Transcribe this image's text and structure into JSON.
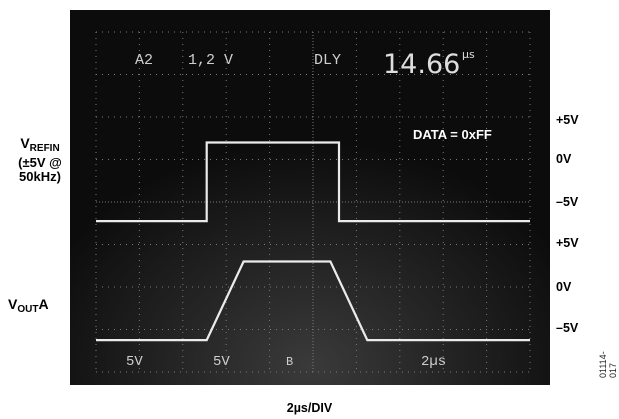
{
  "scope_header": {
    "channel": "A2",
    "scale": "1,2 V",
    "mode": "DLY",
    "delay": "14.66",
    "delay_unit": "µs"
  },
  "scope_footer": {
    "ch1": "5V",
    "ch2": "5V",
    "mark": "B",
    "timebase": "2µs"
  },
  "annotation": "DATA = 0xFF",
  "left_labels": {
    "vrefin_main": "V",
    "vrefin_sub": "REFIN",
    "vrefin_line2": "(±5V @",
    "vrefin_line3": "50kHz)",
    "vout_main": "V",
    "vout_sub": "OUT",
    "vout_suffix": "A"
  },
  "right_labels": [
    "+5V",
    "0V",
    "–5V",
    "+5V",
    "0V",
    "–5V"
  ],
  "xlabel": "2µs/DIV",
  "figure_id": "01114-017",
  "chart_data": {
    "type": "line",
    "xlabel": "2µs/DIV",
    "x_unit": "µs",
    "xlim": [
      0,
      20
    ],
    "grid": true,
    "series": [
      {
        "name": "VREFIN",
        "x": [
          0,
          5.1,
          5.1,
          11.2,
          11.2,
          20
        ],
        "y": [
          -5,
          -5,
          5,
          5,
          -5,
          -5
        ]
      },
      {
        "name": "VOUTA",
        "x": [
          0,
          5.1,
          6.8,
          10.8,
          12.5,
          20
        ],
        "y": [
          -5,
          -5,
          5,
          5,
          -5,
          -5
        ]
      }
    ],
    "annotations": [
      "DATA = 0xFF"
    ]
  },
  "colors": {
    "screen": "#0c0c0c",
    "trace": "#ebebeb",
    "grid": "#7a7a7a",
    "text": "#cfcfcf"
  }
}
